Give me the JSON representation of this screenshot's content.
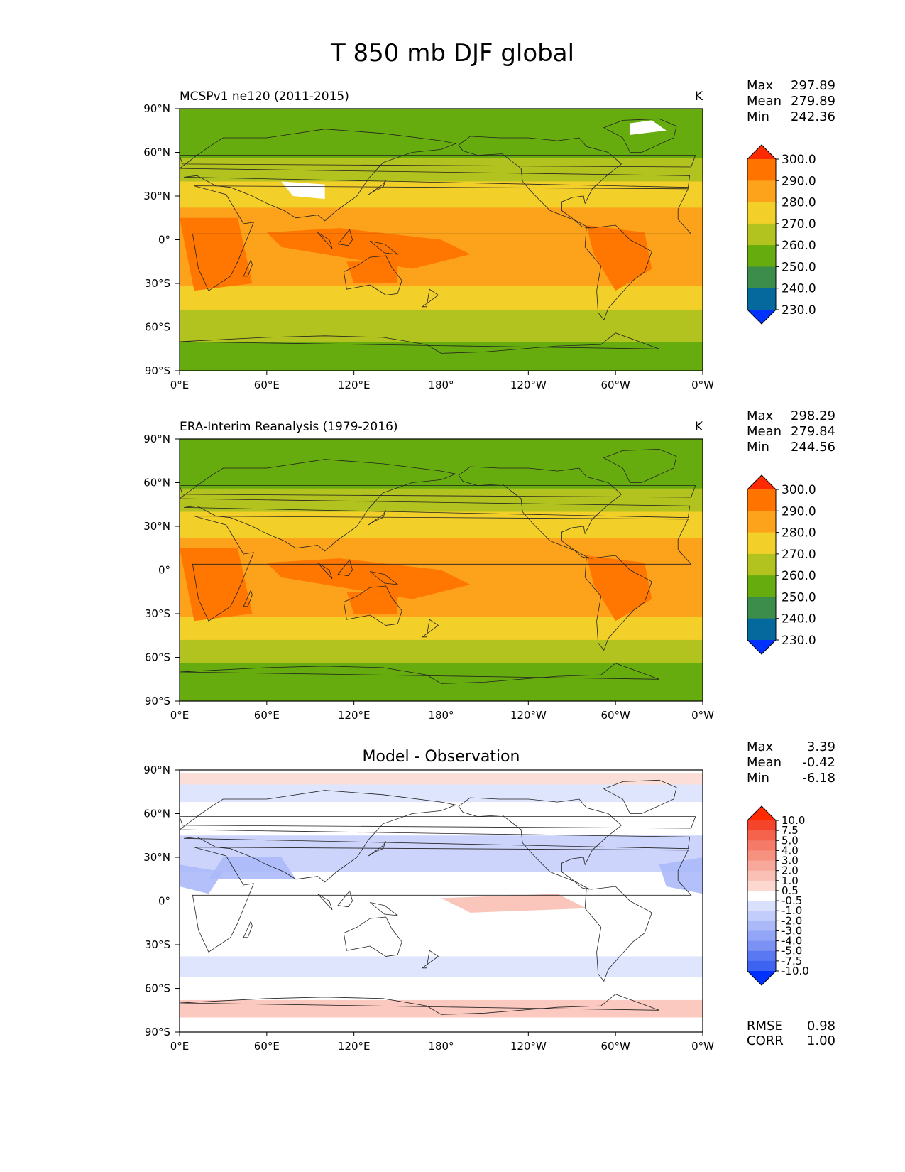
{
  "figure": {
    "title": "T 850 mb DJF global"
  },
  "axes": {
    "lon_ticks": [
      "0°E",
      "60°E",
      "120°E",
      "180°",
      "120°W",
      "60°W",
      "0°W"
    ],
    "lat_ticks": [
      "90°N",
      "60°N",
      "30°N",
      "0°",
      "30°S",
      "60°S",
      "90°S"
    ]
  },
  "chart_data": [
    {
      "type": "heatmap",
      "title": "MCSPv1 ne120 (2011-2015)",
      "units": "K",
      "stats": [
        {
          "label": "Max",
          "value": "297.89"
        },
        {
          "label": "Mean",
          "value": "279.89"
        },
        {
          "label": "Min",
          "value": "242.36"
        }
      ],
      "colorbar": {
        "levels": [
          "300.0",
          "290.0",
          "280.0",
          "270.0",
          "260.0",
          "250.0",
          "240.0",
          "230.0"
        ],
        "colors": [
          "#ff2a00",
          "#ff7400",
          "#fca21b",
          "#f2d029",
          "#b2c21e",
          "#66ac0e",
          "#3c8c4c",
          "#05699e",
          "#0032ff"
        ]
      },
      "xlim": [
        0,
        360
      ],
      "ylim": [
        -90,
        90
      ],
      "zonal_mean_K": [
        {
          "lat": 80,
          "value": 252
        },
        {
          "lat": 60,
          "value": 258
        },
        {
          "lat": 45,
          "value": 266
        },
        {
          "lat": 30,
          "value": 276
        },
        {
          "lat": 15,
          "value": 284
        },
        {
          "lat": 0,
          "value": 286
        },
        {
          "lat": -15,
          "value": 285
        },
        {
          "lat": -30,
          "value": 281
        },
        {
          "lat": -45,
          "value": 272
        },
        {
          "lat": -60,
          "value": 263
        },
        {
          "lat": -75,
          "value": 258
        }
      ]
    },
    {
      "type": "heatmap",
      "title": "ERA-Interim Reanalysis (1979-2016)",
      "units": "K",
      "stats": [
        {
          "label": "Max",
          "value": "298.29"
        },
        {
          "label": "Mean",
          "value": "279.84"
        },
        {
          "label": "Min",
          "value": "244.56"
        }
      ],
      "colorbar": {
        "levels": [
          "300.0",
          "290.0",
          "280.0",
          "270.0",
          "260.0",
          "250.0",
          "240.0",
          "230.0"
        ],
        "colors": [
          "#ff2a00",
          "#ff7400",
          "#fca21b",
          "#f2d029",
          "#b2c21e",
          "#66ac0e",
          "#3c8c4c",
          "#05699e",
          "#0032ff"
        ]
      },
      "xlim": [
        0,
        360
      ],
      "ylim": [
        -90,
        90
      ],
      "zonal_mean_K": [
        {
          "lat": 80,
          "value": 250
        },
        {
          "lat": 60,
          "value": 257
        },
        {
          "lat": 45,
          "value": 266
        },
        {
          "lat": 30,
          "value": 276
        },
        {
          "lat": 15,
          "value": 284
        },
        {
          "lat": 0,
          "value": 286
        },
        {
          "lat": -15,
          "value": 285
        },
        {
          "lat": -30,
          "value": 281
        },
        {
          "lat": -45,
          "value": 272
        },
        {
          "lat": -60,
          "value": 263
        },
        {
          "lat": -75,
          "value": 252
        }
      ]
    },
    {
      "type": "heatmap",
      "title": "Model - Observation",
      "units": "",
      "stats": [
        {
          "label": "Max",
          "value": "3.39"
        },
        {
          "label": "Mean",
          "value": "-0.42"
        },
        {
          "label": "Min",
          "value": "-6.18"
        }
      ],
      "metrics": [
        {
          "label": "RMSE",
          "value": "0.98"
        },
        {
          "label": "CORR",
          "value": "1.00"
        }
      ],
      "colorbar": {
        "levels": [
          "10.0",
          "7.5",
          "5.0",
          "4.0",
          "3.0",
          "2.0",
          "1.0",
          "0.5",
          "-0.5",
          "-1.0",
          "-2.0",
          "-3.0",
          "-4.0",
          "-5.0",
          "-7.5",
          "-10.0"
        ],
        "colors": [
          "#ff2a00",
          "#f4442b",
          "#f5634c",
          "#f57a67",
          "#f7917f",
          "#f8a89a",
          "#fac0b5",
          "#fcd8d1",
          "#ffffff",
          "#d9e0fc",
          "#c3cdfb",
          "#abb9f8",
          "#93a5f6",
          "#7b91f3",
          "#5a78f2",
          "#3e63f1",
          "#0032ff"
        ]
      },
      "xlim": [
        0,
        360
      ],
      "ylim": [
        -90,
        90
      ]
    }
  ]
}
